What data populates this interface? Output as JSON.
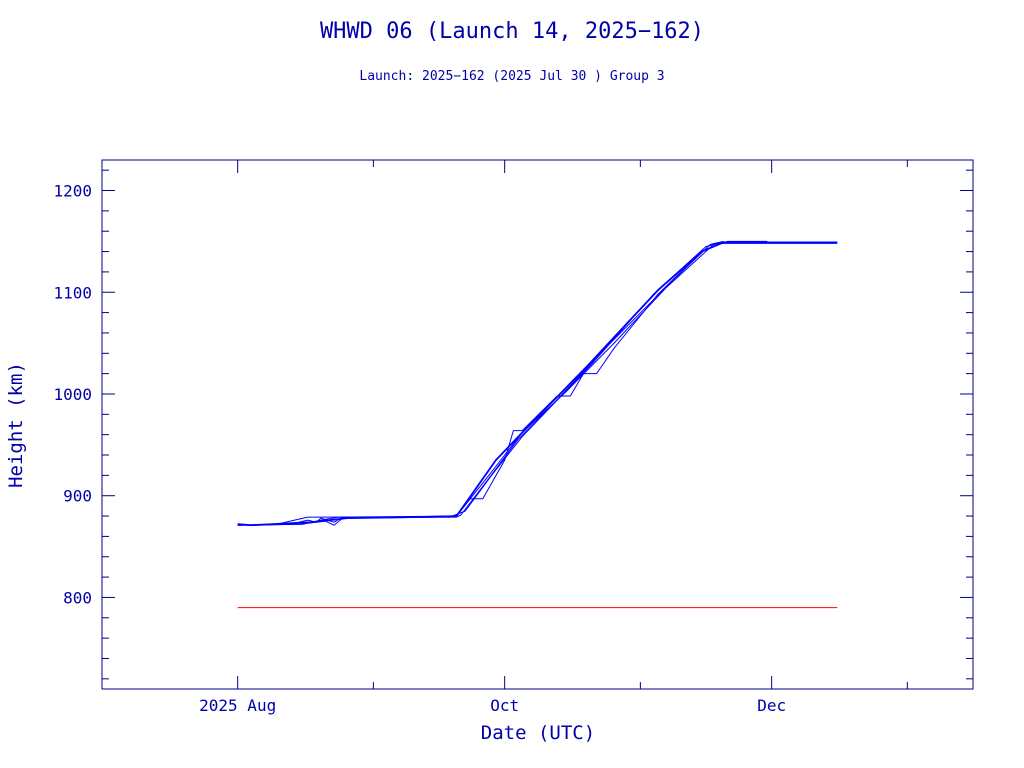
{
  "chart_data": {
    "type": "line",
    "title": "WHWD 06 (Launch 14, 2025−162)",
    "subtitle": "Launch: 2025−162  (2025 Jul 30 )  Group 3",
    "xlabel": "Date (UTC)",
    "ylabel": "Height (km)",
    "x_range": [
      "2025-07-01",
      "2026-01-16"
    ],
    "ylim": [
      710,
      1230
    ],
    "x_major_ticks": [
      {
        "date": "2025-08-01",
        "label": "2025 Aug"
      },
      {
        "date": "2025-10-01",
        "label": "Oct"
      },
      {
        "date": "2025-12-01",
        "label": "Dec"
      }
    ],
    "x_minor_ticks": [
      "2025-09-01",
      "2025-11-01",
      "2026-01-01"
    ],
    "y_major_ticks": [
      800,
      900,
      1000,
      1100,
      1200
    ],
    "y_minor_step": 20,
    "grid": false,
    "colors": {
      "axes": "#000080",
      "text": "#0000aa",
      "series": "#0000ff",
      "reference": "#ff0000"
    },
    "series": [
      {
        "points": [
          [
            "2025-08-01",
            872
          ],
          [
            "2025-08-04",
            871
          ],
          [
            "2025-08-09",
            872
          ],
          [
            "2025-08-18",
            874
          ],
          [
            "2025-08-26",
            878
          ],
          [
            "2025-09-10",
            879
          ],
          [
            "2025-09-20",
            880
          ],
          [
            "2025-09-29",
            935
          ],
          [
            "2025-10-05",
            962
          ],
          [
            "2025-10-20",
            1028
          ],
          [
            "2025-11-05",
            1102
          ],
          [
            "2025-11-15",
            1140
          ],
          [
            "2025-11-20",
            1149
          ],
          [
            "2025-12-01",
            1149
          ],
          [
            "2025-12-16",
            1149
          ]
        ]
      },
      {
        "points": [
          [
            "2025-08-01",
            871
          ],
          [
            "2025-08-10",
            872
          ],
          [
            "2025-08-14",
            876
          ],
          [
            "2025-08-17",
            879
          ],
          [
            "2025-09-10",
            879
          ],
          [
            "2025-09-19",
            880
          ],
          [
            "2025-09-22",
            885
          ],
          [
            "2025-09-28",
            920
          ],
          [
            "2025-10-05",
            958
          ],
          [
            "2025-10-21",
            1030
          ],
          [
            "2025-11-04",
            1098
          ],
          [
            "2025-11-16",
            1145
          ],
          [
            "2025-11-21",
            1150
          ],
          [
            "2025-11-30",
            1150
          ]
        ]
      },
      {
        "points": [
          [
            "2025-08-01",
            871
          ],
          [
            "2025-08-13",
            872
          ],
          [
            "2025-08-17",
            876
          ],
          [
            "2025-08-19",
            874
          ],
          [
            "2025-08-20",
            878
          ],
          [
            "2025-08-23",
            874
          ],
          [
            "2025-08-25",
            879
          ],
          [
            "2025-09-10",
            879
          ],
          [
            "2025-09-20",
            880
          ],
          [
            "2025-09-27",
            918
          ],
          [
            "2025-10-01",
            940
          ],
          [
            "2025-10-05",
            962
          ],
          [
            "2025-10-15",
            1002
          ],
          [
            "2025-10-26",
            1050
          ],
          [
            "2025-11-07",
            1105
          ],
          [
            "2025-11-18",
            1148
          ],
          [
            "2025-12-16",
            1148
          ]
        ]
      },
      {
        "points": [
          [
            "2025-08-01",
            871
          ],
          [
            "2025-08-16",
            872
          ],
          [
            "2025-08-20",
            876
          ],
          [
            "2025-08-24",
            879
          ],
          [
            "2025-09-20",
            880
          ],
          [
            "2025-09-23",
            897
          ],
          [
            "2025-09-26",
            897
          ],
          [
            "2025-10-01",
            935
          ],
          [
            "2025-10-03",
            964
          ],
          [
            "2025-10-05",
            964
          ],
          [
            "2025-10-13",
            998
          ],
          [
            "2025-10-16",
            998
          ],
          [
            "2025-10-19",
            1020
          ],
          [
            "2025-10-22",
            1020
          ],
          [
            "2025-10-26",
            1045
          ],
          [
            "2025-11-05",
            1098
          ],
          [
            "2025-11-15",
            1140
          ]
        ]
      },
      {
        "points": [
          [
            "2025-08-03",
            871
          ],
          [
            "2025-08-15",
            872
          ],
          [
            "2025-08-21",
            875
          ],
          [
            "2025-08-23",
            871
          ],
          [
            "2025-08-25",
            878
          ],
          [
            "2025-09-20",
            879
          ],
          [
            "2025-09-21",
            881
          ],
          [
            "2025-09-27",
            915
          ],
          [
            "2025-10-04",
            955
          ],
          [
            "2025-10-12",
            990
          ],
          [
            "2025-10-24",
            1045
          ],
          [
            "2025-11-08",
            1110
          ],
          [
            "2025-11-17",
            1147
          ],
          [
            "2025-11-20",
            1150
          ]
        ]
      }
    ],
    "reference_lines": [
      {
        "start": "2025-08-01",
        "end": "2025-12-16",
        "y": 790
      }
    ]
  }
}
